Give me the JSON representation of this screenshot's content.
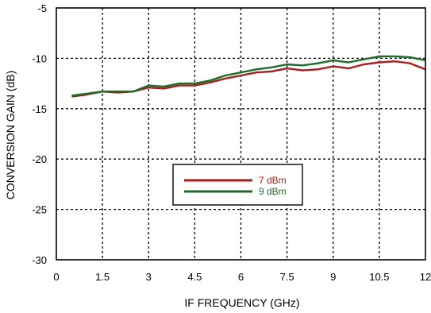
{
  "colors": {
    "series_7dbm": "#a3201c",
    "series_9dbm": "#1e6b2a",
    "grid": "#000000",
    "frame": "#000000"
  },
  "chart_data": {
    "type": "line",
    "title": "",
    "xlabel": "IF FREQUENCY (GHz)",
    "ylabel": "CONVERSION GAIN (dB)",
    "xlim": [
      0,
      12
    ],
    "ylim": [
      -30,
      -5
    ],
    "xticks": [
      0,
      1.5,
      3,
      4.5,
      6,
      7.5,
      9,
      10.5,
      12
    ],
    "xtick_labels": [
      "0",
      "1.5",
      "3",
      "4.5",
      "6",
      "7.5",
      "9",
      "10.5",
      "12"
    ],
    "yticks": [
      -5,
      -10,
      -15,
      -20,
      -25,
      -30
    ],
    "ytick_labels": [
      "-5",
      "-10",
      "-15",
      "-20",
      "-25",
      "-30"
    ],
    "grid": true,
    "legend_position": "center",
    "x": [
      0.5,
      1.0,
      1.5,
      2.0,
      2.5,
      3.0,
      3.5,
      4.0,
      4.5,
      5.0,
      5.5,
      6.0,
      6.5,
      7.0,
      7.5,
      8.0,
      8.5,
      9.0,
      9.5,
      10.0,
      10.5,
      11.0,
      11.5,
      12.0
    ],
    "series": [
      {
        "name": "7 dBm",
        "values": [
          -13.8,
          -13.6,
          -13.3,
          -13.4,
          -13.3,
          -12.9,
          -13.0,
          -12.7,
          -12.7,
          -12.4,
          -12.0,
          -11.7,
          -11.4,
          -11.3,
          -11.0,
          -11.2,
          -11.1,
          -10.8,
          -11.0,
          -10.6,
          -10.4,
          -10.3,
          -10.5,
          -11.1
        ]
      },
      {
        "name": "9 dBm",
        "values": [
          -13.7,
          -13.5,
          -13.3,
          -13.3,
          -13.3,
          -12.7,
          -12.8,
          -12.5,
          -12.5,
          -12.2,
          -11.7,
          -11.4,
          -11.1,
          -10.9,
          -10.6,
          -10.7,
          -10.5,
          -10.2,
          -10.4,
          -10.1,
          -9.8,
          -9.8,
          -9.9,
          -10.2
        ]
      }
    ]
  }
}
